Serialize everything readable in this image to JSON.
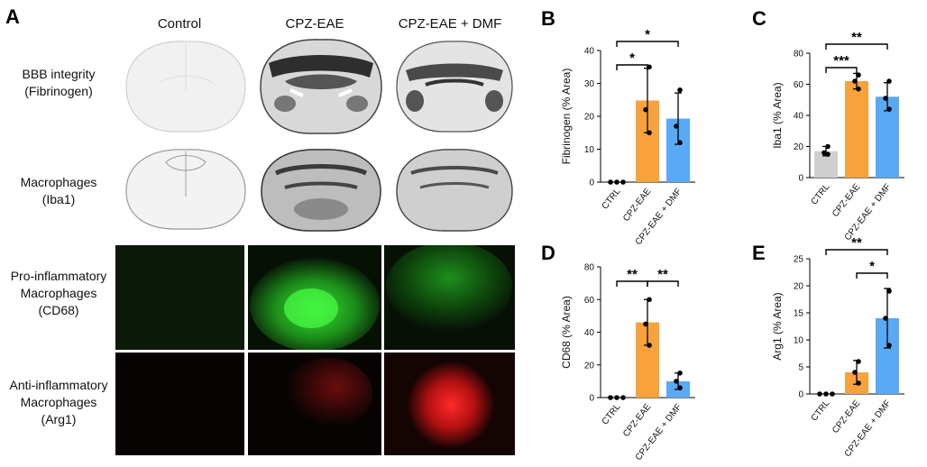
{
  "panelA": {
    "letter": "A",
    "columns": [
      "Control",
      "CPZ-EAE",
      "CPZ-EAE + DMF"
    ],
    "rows": [
      {
        "lines": [
          "BBB integrity",
          "(Fibrinogen)"
        ]
      },
      {
        "lines": [
          "Macrophages",
          "(Iba1)"
        ]
      },
      {
        "lines": [
          "Pro-inflammatory",
          "Macrophages",
          "(CD68)"
        ]
      },
      {
        "lines": [
          "Anti-inflammatory",
          "Macrophages",
          "(Arg1)"
        ]
      }
    ],
    "fluo_colors": {
      "cd68": "#2ee62a",
      "arg1": "#e01818"
    }
  },
  "chart_data": [
    {
      "letter": "B",
      "type": "bar",
      "categories": [
        "CTRL",
        "CPZ-EAE",
        "CPZ-EAE + DMF"
      ],
      "values": [
        0,
        24.8,
        19.3
      ],
      "errors": [
        0,
        9.8,
        7.8
      ],
      "points": [
        [
          0,
          0,
          0
        ],
        [
          15,
          22,
          35
        ],
        [
          12,
          17,
          28
        ]
      ],
      "colors": [
        "#cfcfcf",
        "#f7a23c",
        "#5aa9f4"
      ],
      "ylabel": "Fibrinogen (% Area)",
      "ylim": [
        0,
        40
      ],
      "yticks": [
        0,
        10,
        20,
        30,
        40
      ],
      "sig": [
        {
          "from": 0,
          "to": 1,
          "label": "*",
          "level": 0
        },
        {
          "from": 0,
          "to": 2,
          "label": "*",
          "level": 1
        }
      ]
    },
    {
      "letter": "C",
      "type": "bar",
      "categories": [
        "CTRL",
        "CPZ-EAE",
        "CPZ-EAE + DMF"
      ],
      "values": [
        17,
        62,
        52
      ],
      "errors": [
        3,
        5,
        9
      ],
      "points": [
        [
          15,
          16,
          20
        ],
        [
          57,
          62,
          66
        ],
        [
          44,
          51,
          62
        ]
      ],
      "colors": [
        "#cfcfcf",
        "#f7a23c",
        "#5aa9f4"
      ],
      "ylabel": "Iba1 (% Area)",
      "ylim": [
        0,
        80
      ],
      "yticks": [
        0,
        20,
        40,
        60,
        80
      ],
      "sig": [
        {
          "from": 0,
          "to": 1,
          "label": "***",
          "level": 0
        },
        {
          "from": 0,
          "to": 2,
          "label": "**",
          "level": 1
        }
      ]
    },
    {
      "letter": "D",
      "type": "bar",
      "categories": [
        "CTRL",
        "CPZ-EAE",
        "CPZ-EAE + DMF"
      ],
      "values": [
        0,
        46,
        10
      ],
      "errors": [
        0,
        14,
        5
      ],
      "points": [
        [
          0,
          0,
          0
        ],
        [
          32,
          45,
          60
        ],
        [
          6,
          10,
          15
        ]
      ],
      "colors": [
        "#cfcfcf",
        "#f7a23c",
        "#5aa9f4"
      ],
      "ylabel": "CD68 (% Area)",
      "ylim": [
        0,
        80
      ],
      "yticks": [
        0,
        20,
        40,
        60,
        80
      ],
      "sig": [
        {
          "from": 0,
          "to": 1,
          "label": "**",
          "level": 0
        },
        {
          "from": 1,
          "to": 2,
          "label": "**",
          "level": 0
        }
      ]
    },
    {
      "letter": "E",
      "type": "bar",
      "categories": [
        "CTRL",
        "CPZ-EAE",
        "CPZ-EAE + DMF"
      ],
      "values": [
        0,
        4,
        14
      ],
      "errors": [
        0,
        2.2,
        5.5
      ],
      "points": [
        [
          0,
          0,
          0
        ],
        [
          2,
          4,
          6
        ],
        [
          9,
          14,
          19
        ]
      ],
      "colors": [
        "#cfcfcf",
        "#f7a23c",
        "#5aa9f4"
      ],
      "ylabel": "Arg1 (% Area)",
      "ylim": [
        0,
        25
      ],
      "yticks": [
        0,
        5,
        10,
        15,
        20,
        25
      ],
      "sig": [
        {
          "from": 1,
          "to": 2,
          "label": "*",
          "level": 0
        },
        {
          "from": 0,
          "to": 2,
          "label": "**",
          "level": 1
        }
      ]
    }
  ]
}
